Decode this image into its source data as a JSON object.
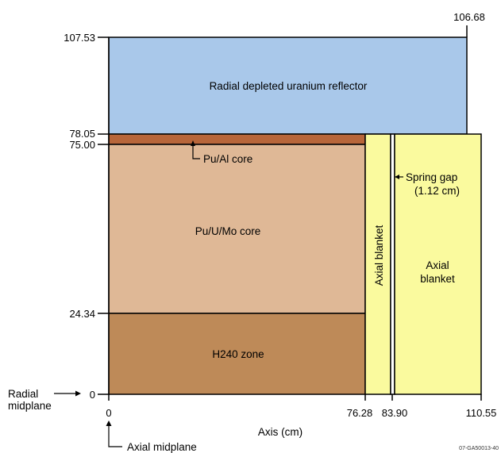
{
  "colors": {
    "reflector": "#a9c8ea",
    "pu_al_strip": "#b8663a",
    "pu_u_mo": "#dfb896",
    "h240": "#be8a58",
    "blanket": "#fafa9e",
    "outline": "#000000"
  },
  "regions": {
    "reflector": "Radial depleted uranium reflector",
    "pu_al": "Pu/Al core",
    "pu_u_mo": "Pu/U/Mo core",
    "h240": "H240 zone",
    "axial_blanket_inner": "Axial blanket",
    "axial_blanket_outer_line1": "Axial",
    "axial_blanket_outer_line2": "blanket",
    "spring_gap_line1": "Spring gap",
    "spring_gap_line2": "(1.12 cm)"
  },
  "y_ticks": {
    "t107": "107.53",
    "t78": "78.05",
    "t75": "75.00",
    "t24": "24.34",
    "t0": "0"
  },
  "x_ticks": {
    "t0": "0",
    "t76": "76.28",
    "t83": "83.90",
    "t110": "110.55",
    "top": "106.68"
  },
  "labels": {
    "x_axis": "Axis (cm)",
    "radial_line1": "Radial",
    "radial_line2": "midplane",
    "axial_midplane": "Axial midplane",
    "figure_id": "07-GA50013-40"
  }
}
